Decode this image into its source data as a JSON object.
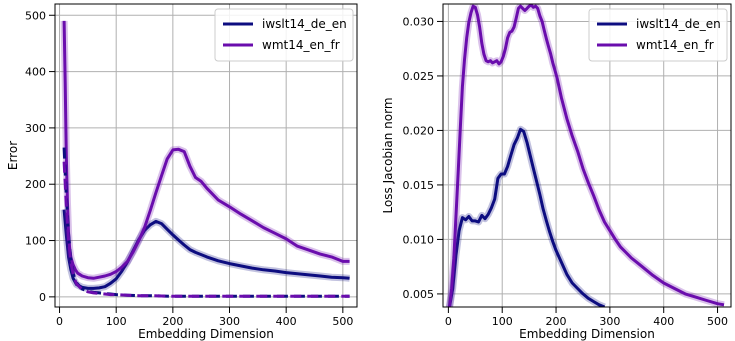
{
  "chart_data": [
    {
      "type": "line",
      "title": "",
      "xlabel": "Embedding Dimension",
      "ylabel": "Error",
      "xlim": [
        -8,
        525
      ],
      "ylim": [
        -18,
        520
      ],
      "xticks": [
        0,
        100,
        200,
        300,
        400,
        500
      ],
      "yticks": [
        0,
        100,
        200,
        300,
        400,
        500
      ],
      "grid": true,
      "legend_position": "top-right",
      "series": [
        {
          "name": "iwslt14_de_en",
          "color": "#0d0d80",
          "style": "solid",
          "x": [
            8,
            12,
            16,
            20,
            24,
            30,
            40,
            50,
            60,
            70,
            80,
            90,
            100,
            110,
            120,
            130,
            140,
            150,
            160,
            170,
            180,
            190,
            200,
            210,
            220,
            230,
            240,
            250,
            260,
            280,
            300,
            320,
            340,
            360,
            380,
            400,
            420,
            440,
            460,
            480,
            500,
            512
          ],
          "y": [
            155,
            110,
            70,
            48,
            33,
            22,
            17,
            15,
            15,
            16,
            18,
            24,
            32,
            46,
            62,
            82,
            102,
            118,
            128,
            134,
            130,
            120,
            110,
            101,
            92,
            84,
            79,
            75,
            71,
            64,
            59,
            55,
            51,
            48,
            46,
            43,
            41,
            39,
            37,
            35,
            34,
            33
          ]
        },
        {
          "name": "wmt14_en_fr",
          "color": "#6a0dad",
          "style": "solid",
          "x": [
            8,
            10,
            12,
            14,
            16,
            18,
            20,
            24,
            28,
            32,
            40,
            50,
            60,
            70,
            80,
            90,
            100,
            110,
            120,
            130,
            140,
            150,
            160,
            170,
            180,
            190,
            200,
            210,
            220,
            230,
            240,
            250,
            260,
            280,
            300,
            320,
            340,
            360,
            380,
            400,
            420,
            440,
            460,
            480,
            500,
            512
          ],
          "y": [
            490,
            380,
            250,
            165,
            112,
            85,
            70,
            57,
            48,
            42,
            37,
            34,
            33,
            35,
            37,
            40,
            45,
            53,
            63,
            80,
            100,
            123,
            153,
            185,
            215,
            245,
            261,
            262,
            258,
            232,
            212,
            205,
            193,
            172,
            160,
            147,
            135,
            123,
            113,
            103,
            90,
            83,
            76,
            71,
            63,
            63
          ]
        },
        {
          "name": "",
          "color": "#0d0d80",
          "style": "dashed",
          "x": [
            8,
            12,
            16,
            20,
            25,
            30,
            40,
            50,
            60,
            70,
            80,
            90,
            100,
            120,
            140,
            160,
            200,
            300,
            400,
            512
          ],
          "y": [
            265,
            180,
            110,
            65,
            38,
            25,
            14,
            10,
            8,
            7,
            6,
            5,
            4,
            3,
            2,
            2,
            1,
            1,
            1,
            1
          ]
        },
        {
          "name": "",
          "color": "#6a0dad",
          "style": "dashed",
          "x": [
            8,
            12,
            16,
            20,
            25,
            30,
            40,
            50,
            60,
            70,
            80,
            90,
            100,
            120,
            140,
            160,
            200,
            300,
            400,
            512
          ],
          "y": [
            240,
            165,
            100,
            60,
            36,
            23,
            13,
            9,
            7,
            6,
            5,
            4,
            4,
            3,
            2,
            2,
            1,
            1,
            1,
            1
          ]
        }
      ]
    },
    {
      "type": "line",
      "title": "",
      "xlabel": "Embedding Dimension",
      "ylabel": "Loss Jacobian norm",
      "xlim": [
        -10,
        525
      ],
      "ylim": [
        0.0038,
        0.0316
      ],
      "xticks": [
        0,
        100,
        200,
        300,
        400,
        500
      ],
      "yticks": [
        0.005,
        0.01,
        0.015,
        0.02,
        0.025,
        0.03
      ],
      "ytick_labels": [
        "0.005",
        "0.010",
        "0.015",
        "0.020",
        "0.025",
        "0.030"
      ],
      "grid": true,
      "legend_position": "top-right",
      "series": [
        {
          "name": "iwslt14_de_en",
          "color": "#0d0d80",
          "style": "solid",
          "x": [
            2,
            8,
            14,
            20,
            26,
            32,
            38,
            44,
            50,
            56,
            62,
            68,
            74,
            80,
            86,
            92,
            98,
            104,
            110,
            116,
            122,
            128,
            134,
            140,
            146,
            152,
            158,
            164,
            170,
            176,
            182,
            188,
            194,
            200,
            210,
            220,
            230,
            240,
            250,
            260,
            270,
            280,
            290
          ],
          "y": [
            0.0038,
            0.0055,
            0.0085,
            0.0108,
            0.012,
            0.0118,
            0.0121,
            0.0117,
            0.0117,
            0.0116,
            0.0122,
            0.0119,
            0.0123,
            0.0129,
            0.0137,
            0.0156,
            0.016,
            0.016,
            0.0167,
            0.0177,
            0.0187,
            0.0193,
            0.0201,
            0.0199,
            0.0189,
            0.0177,
            0.0165,
            0.0153,
            0.0141,
            0.0128,
            0.0117,
            0.0107,
            0.0098,
            0.009,
            0.0079,
            0.0068,
            0.006,
            0.0055,
            0.005,
            0.0046,
            0.0043,
            0.004,
            0.0038
          ]
        },
        {
          "name": "wmt14_en_fr",
          "color": "#6a0dad",
          "style": "solid",
          "x": [
            2,
            6,
            10,
            14,
            18,
            22,
            26,
            30,
            34,
            38,
            42,
            46,
            50,
            54,
            58,
            62,
            66,
            70,
            74,
            78,
            82,
            86,
            90,
            94,
            98,
            102,
            106,
            110,
            114,
            118,
            122,
            126,
            130,
            134,
            138,
            142,
            146,
            150,
            154,
            158,
            162,
            166,
            170,
            174,
            178,
            182,
            186,
            190,
            194,
            198,
            202,
            210,
            220,
            230,
            240,
            250,
            260,
            270,
            280,
            290,
            300,
            310,
            320,
            330,
            340,
            350,
            360,
            380,
            400,
            420,
            440,
            460,
            480,
            500,
            512
          ],
          "y": [
            0.0038,
            0.0055,
            0.0082,
            0.012,
            0.016,
            0.02,
            0.024,
            0.0265,
            0.0285,
            0.0299,
            0.0308,
            0.0314,
            0.0313,
            0.0306,
            0.0295,
            0.028,
            0.027,
            0.0264,
            0.0263,
            0.0264,
            0.0262,
            0.0263,
            0.0264,
            0.0261,
            0.0263,
            0.0268,
            0.0275,
            0.0285,
            0.029,
            0.0291,
            0.0295,
            0.0303,
            0.0312,
            0.0314,
            0.0312,
            0.031,
            0.0312,
            0.0314,
            0.0315,
            0.0313,
            0.0314,
            0.0312,
            0.0305,
            0.03,
            0.0292,
            0.0284,
            0.0277,
            0.027,
            0.0262,
            0.0255,
            0.0248,
            0.023,
            0.0211,
            0.0195,
            0.0181,
            0.0165,
            0.0152,
            0.014,
            0.0127,
            0.0116,
            0.0108,
            0.01,
            0.0093,
            0.0088,
            0.0083,
            0.0079,
            0.0075,
            0.0067,
            0.006,
            0.0055,
            0.005,
            0.0047,
            0.0044,
            0.0041,
            0.004
          ]
        }
      ]
    }
  ]
}
